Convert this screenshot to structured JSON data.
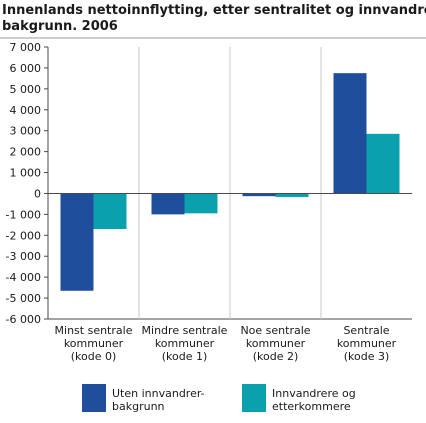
{
  "chart_data": {
    "type": "bar",
    "title_lines": [
      "Innenlands nettoinnflytting, etter sentralitet og innvandrer-",
      "bakgrunn. 2006"
    ],
    "categories": [
      [
        "Minst sentrale",
        "kommuner",
        "(kode 0)"
      ],
      [
        "Mindre sentrale",
        "kommuner",
        "(kode 1)"
      ],
      [
        "Noe sentrale",
        "kommuner",
        "(kode 2)"
      ],
      [
        "Sentrale",
        "kommuner",
        "(kode 3)"
      ]
    ],
    "series": [
      {
        "name_lines": [
          "Uten innvandrer-",
          "bakgrunn"
        ],
        "color": "#1f4e9c",
        "values": [
          -4650,
          -1000,
          -130,
          5750
        ]
      },
      {
        "name_lines": [
          "Innvandrere og",
          "etterkommere"
        ],
        "color": "#0aa0ae",
        "values": [
          -1700,
          -950,
          -170,
          2850
        ]
      }
    ],
    "ylim": [
      -6000,
      7000
    ],
    "ytick_step": 1000,
    "ytick_labels": [
      "7 000",
      "6 000",
      "5 000",
      "4 000",
      "3 000",
      "2 000",
      "1 000",
      "0",
      "-1 000",
      "-2 000",
      "-3 000",
      "-4 000",
      "-5 000",
      "-6 000"
    ],
    "grid": "vertical category separators",
    "legend_position": "bottom"
  }
}
